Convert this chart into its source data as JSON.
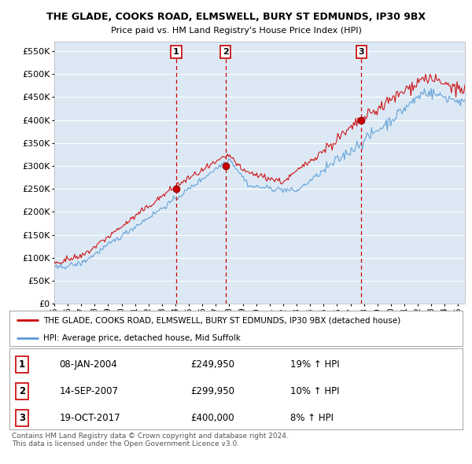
{
  "title": "THE GLADE, COOKS ROAD, ELMSWELL, BURY ST EDMUNDS, IP30 9BX",
  "subtitle": "Price paid vs. HM Land Registry's House Price Index (HPI)",
  "ytick_values": [
    0,
    50000,
    100000,
    150000,
    200000,
    250000,
    300000,
    350000,
    400000,
    450000,
    500000,
    550000
  ],
  "ylim": [
    0,
    570000
  ],
  "line_color_property": "#cc0000",
  "line_color_hpi": "#5b9bd5",
  "background_color": "#dce9f5",
  "grid_color": "#ffffff",
  "purchase_years": [
    2004.05,
    2007.72,
    2017.8
  ],
  "purchase_prices": [
    249950,
    299950,
    400000
  ],
  "purchase_labels": [
    "1",
    "2",
    "3"
  ],
  "legend_entry1": "THE GLADE, COOKS ROAD, ELMSWELL, BURY ST EDMUNDS, IP30 9BX (detached house)",
  "legend_entry2": "HPI: Average price, detached house, Mid Suffolk",
  "table_rows": [
    {
      "num": "1",
      "date": "08-JAN-2004",
      "price": "£249,950",
      "change": "19% ↑ HPI"
    },
    {
      "num": "2",
      "date": "14-SEP-2007",
      "price": "£299,950",
      "change": "10% ↑ HPI"
    },
    {
      "num": "3",
      "date": "19-OCT-2017",
      "price": "£400,000",
      "change": "8% ↑ HPI"
    }
  ],
  "footer": "Contains HM Land Registry data © Crown copyright and database right 2024.\nThis data is licensed under the Open Government Licence v3.0."
}
